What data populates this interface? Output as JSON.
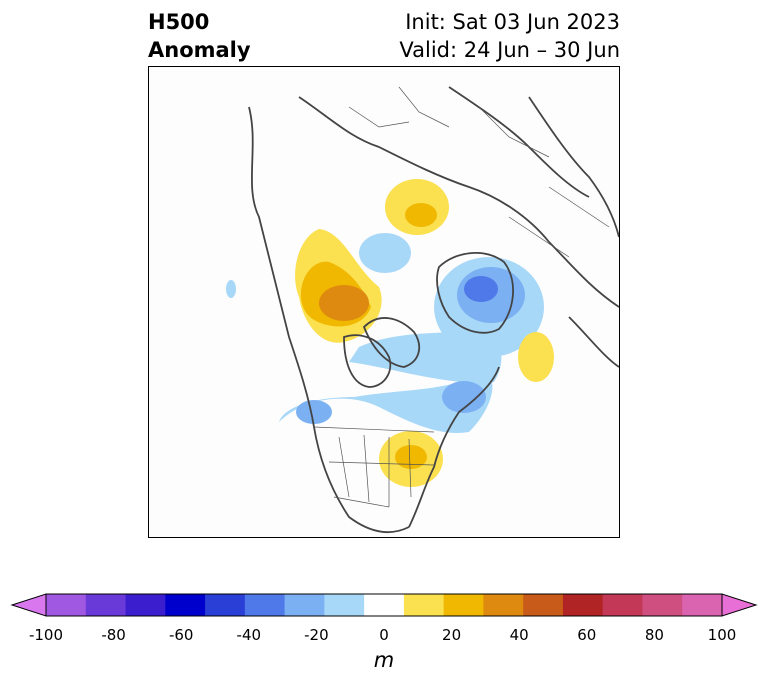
{
  "title": {
    "left_line1": "H500",
    "left_line2": "Anomaly",
    "init": "Init: Sat 03 Jun 2023",
    "valid": "Valid: 24 Jun – 30 Jun"
  },
  "colorbar": {
    "units": "m",
    "ticks": [
      "-100",
      "-80",
      "-60",
      "-40",
      "-20",
      "0",
      "20",
      "40",
      "60",
      "80",
      "100"
    ],
    "colors": [
      "#d977ee",
      "#a058e3",
      "#6a3ad8",
      "#3b1fcf",
      "#0000cc",
      "#2a3fd6",
      "#4f78e8",
      "#7bb0f3",
      "#a8d8f8",
      "#ffffff",
      "#fbe04f",
      "#f0b800",
      "#de8a10",
      "#c85b1a",
      "#b02426",
      "#c23856",
      "#cf4f80",
      "#da64af",
      "#e86fd6"
    ],
    "extend": "both"
  }
}
